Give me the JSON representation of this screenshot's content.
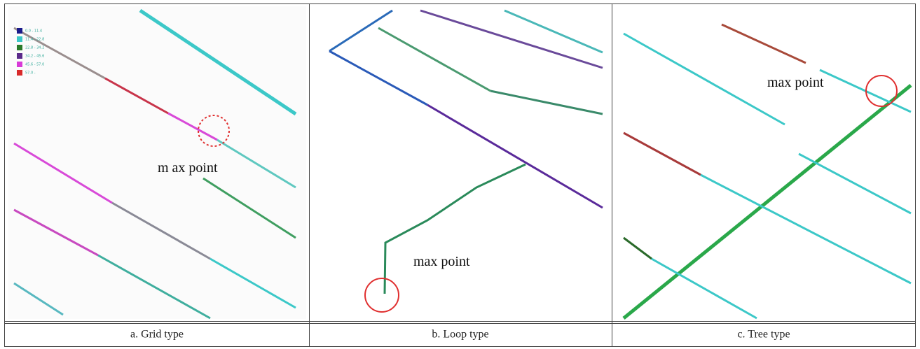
{
  "panels": [
    {
      "caption": "a. Grid type",
      "annotation": "m ax  point",
      "legend": [
        "0.0 - 11.4",
        "11.4 - 22.8",
        "22.8 - 34.2",
        "34.2 - 45.6",
        "45.6 - 57.0",
        "57.0 -"
      ]
    },
    {
      "caption": "b. Loop type",
      "annotation": "max point"
    },
    {
      "caption": "c. Tree type",
      "annotation": "max point"
    }
  ]
}
